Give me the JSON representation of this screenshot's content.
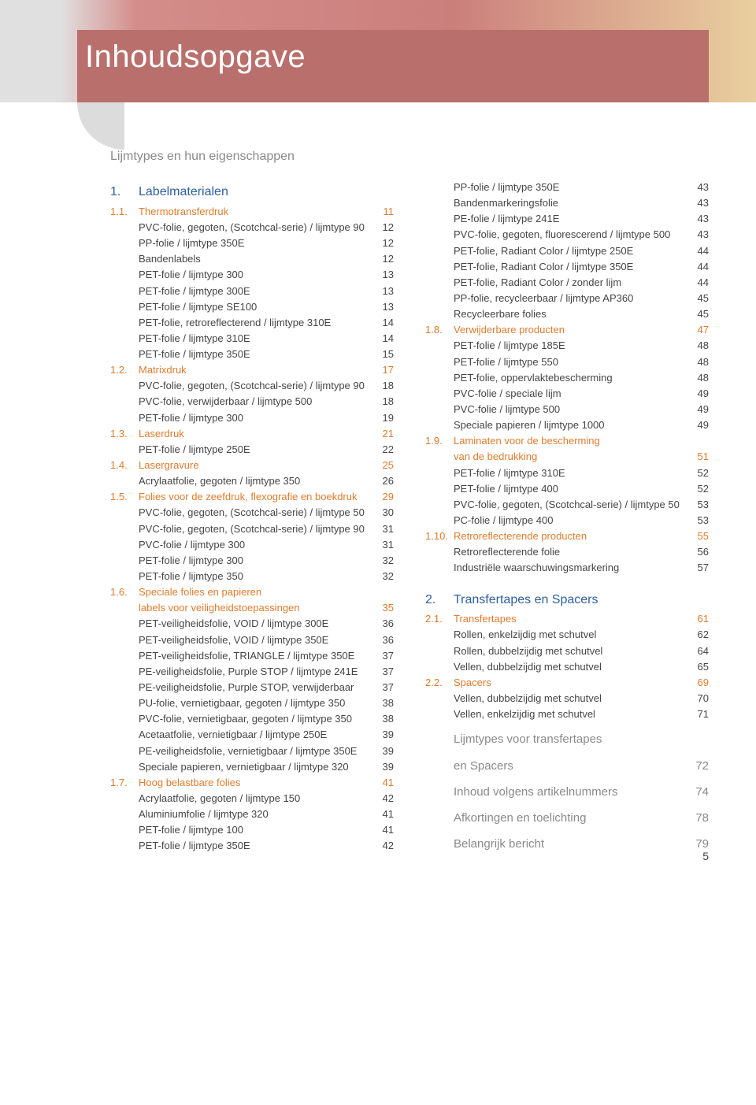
{
  "banner_title": "Inhoudsopgave",
  "intro": "Lijmtypes en hun eigenschappen",
  "page_number": "5",
  "left": [
    {
      "t": "chapter",
      "n": "1.",
      "l": "Labelmaterialen",
      "p": ""
    },
    {
      "t": "section",
      "n": "1.1.",
      "l": "Thermotransferdruk",
      "p": "11"
    },
    {
      "t": "item",
      "n": "",
      "l": "PVC-folie, gegoten, (Scotchcal-serie) / lijmtype 90",
      "p": "12"
    },
    {
      "t": "item",
      "n": "",
      "l": "PP-folie / lijmtype 350E",
      "p": "12"
    },
    {
      "t": "item",
      "n": "",
      "l": "Bandenlabels",
      "p": "12"
    },
    {
      "t": "item",
      "n": "",
      "l": "PET-folie / lijmtype 300",
      "p": "13"
    },
    {
      "t": "item",
      "n": "",
      "l": "PET-folie / lijmtype 300E",
      "p": "13"
    },
    {
      "t": "item",
      "n": "",
      "l": "PET-folie / lijmtype SE100",
      "p": "13"
    },
    {
      "t": "item",
      "n": "",
      "l": "PET-folie, retroreflecterend / lijmtype 310E",
      "p": "14"
    },
    {
      "t": "item",
      "n": "",
      "l": "PET-folie / lijmtype 310E",
      "p": "14"
    },
    {
      "t": "item",
      "n": "",
      "l": "PET-folie / lijmtype 350E",
      "p": "15"
    },
    {
      "t": "section",
      "n": "1.2.",
      "l": "Matrixdruk",
      "p": "17"
    },
    {
      "t": "item",
      "n": "",
      "l": "PVC-folie, gegoten, (Scotchcal-serie) / lijmtype 90",
      "p": "18"
    },
    {
      "t": "item",
      "n": "",
      "l": "PVC-folie, verwijderbaar / lijmtype 500",
      "p": "18"
    },
    {
      "t": "item",
      "n": "",
      "l": "PET-folie / lijmtype 300",
      "p": "19"
    },
    {
      "t": "section",
      "n": "1.3.",
      "l": "Laserdruk",
      "p": "21"
    },
    {
      "t": "item",
      "n": "",
      "l": "PET-folie / lijmtype 250E",
      "p": "22"
    },
    {
      "t": "section",
      "n": "1.4.",
      "l": "Lasergravure",
      "p": "25"
    },
    {
      "t": "item",
      "n": "",
      "l": "Acrylaatfolie, gegoten / lijmtype 350",
      "p": "26"
    },
    {
      "t": "section",
      "n": "1.5.",
      "l": "Folies voor de zeefdruk, flexografie en boekdruk",
      "p": "29"
    },
    {
      "t": "item",
      "n": "",
      "l": "PVC-folie, gegoten, (Scotchcal-serie) / lijmtype 50",
      "p": "30"
    },
    {
      "t": "item",
      "n": "",
      "l": "PVC-folie, gegoten, (Scotchcal-serie) / lijmtype 90",
      "p": "31"
    },
    {
      "t": "item",
      "n": "",
      "l": "PVC-folie / lijmtype 300",
      "p": "31"
    },
    {
      "t": "item",
      "n": "",
      "l": "PET-folie / lijmtype 300",
      "p": "32"
    },
    {
      "t": "item",
      "n": "",
      "l": "PET-folie / lijmtype 350",
      "p": "32"
    },
    {
      "t": "section",
      "n": "1.6.",
      "l": "Speciale folies en papieren",
      "p": ""
    },
    {
      "t": "section",
      "n": "",
      "l": "labels voor veiligheidstoepassingen",
      "p": "35"
    },
    {
      "t": "item",
      "n": "",
      "l": "PET-veiligheidsfolie, VOID / lijmtype 300E",
      "p": "36"
    },
    {
      "t": "item",
      "n": "",
      "l": "PET-veiligheidsfolie, VOID / lijmtype 350E",
      "p": "36"
    },
    {
      "t": "item",
      "n": "",
      "l": "PET-veiligheidsfolie, TRIANGLE / lijmtype 350E",
      "p": "37"
    },
    {
      "t": "item",
      "n": "",
      "l": "PE-veiligheidsfolie, Purple STOP / lijmtype 241E",
      "p": "37"
    },
    {
      "t": "item",
      "n": "",
      "l": "PE-veiligheidsfolie, Purple STOP, verwijderbaar",
      "p": "37"
    },
    {
      "t": "item",
      "n": "",
      "l": "PU-folie, vernietigbaar, gegoten / lijmtype 350",
      "p": "38"
    },
    {
      "t": "item",
      "n": "",
      "l": "PVC-folie, vernietigbaar, gegoten / lijmtype 350",
      "p": "38"
    },
    {
      "t": "item",
      "n": "",
      "l": "Acetaatfolie, vernietigbaar / lijmtype 250E",
      "p": "39"
    },
    {
      "t": "item",
      "n": "",
      "l": "PE-veiligheidsfolie, vernietigbaar / lijmtype 350E",
      "p": "39"
    },
    {
      "t": "item",
      "n": "",
      "l": "Speciale papieren, vernietigbaar / lijmtype 320",
      "p": "39"
    },
    {
      "t": "section",
      "n": "1.7.",
      "l": "Hoog belastbare folies",
      "p": "41"
    },
    {
      "t": "item",
      "n": "",
      "l": "Acrylaatfolie, gegoten / lijmtype 150",
      "p": "42"
    },
    {
      "t": "item",
      "n": "",
      "l": "Aluminiumfolie / lijmtype 320",
      "p": "41"
    },
    {
      "t": "item",
      "n": "",
      "l": "PET-folie / lijmtype 100",
      "p": "41"
    },
    {
      "t": "item",
      "n": "",
      "l": "PET-folie / lijmtype 350E",
      "p": "42"
    }
  ],
  "right": [
    {
      "t": "item",
      "n": "",
      "l": "PP-folie / lijmtype 350E",
      "p": "43"
    },
    {
      "t": "item",
      "n": "",
      "l": "Bandenmarkeringsfolie",
      "p": "43"
    },
    {
      "t": "item",
      "n": "",
      "l": "PE-folie / lijmtype 241E",
      "p": "43"
    },
    {
      "t": "item",
      "n": "",
      "l": "PVC-folie, gegoten, fluorescerend / lijmtype 500",
      "p": "43"
    },
    {
      "t": "item",
      "n": "",
      "l": "PET-folie, Radiant Color / lijmtype 250E",
      "p": "44"
    },
    {
      "t": "item",
      "n": "",
      "l": "PET-folie, Radiant Color / lijmtype 350E",
      "p": "44"
    },
    {
      "t": "item",
      "n": "",
      "l": "PET-folie, Radiant Color / zonder lijm",
      "p": "44"
    },
    {
      "t": "item",
      "n": "",
      "l": "PP-folie, recycleerbaar / lijmtype AP360",
      "p": "45"
    },
    {
      "t": "item",
      "n": "",
      "l": "Recycleerbare folies",
      "p": "45"
    },
    {
      "t": "section",
      "n": "1.8.",
      "l": "Verwijderbare producten",
      "p": "47"
    },
    {
      "t": "item",
      "n": "",
      "l": "PET-folie / lijmtype 185E",
      "p": "48"
    },
    {
      "t": "item",
      "n": "",
      "l": "PET-folie / lijmtype 550",
      "p": "48"
    },
    {
      "t": "item",
      "n": "",
      "l": "PET-folie, oppervlaktebescherming",
      "p": "48"
    },
    {
      "t": "item",
      "n": "",
      "l": "PVC-folie / speciale lijm",
      "p": "49"
    },
    {
      "t": "item",
      "n": "",
      "l": "PVC-folie / lijmtype 500",
      "p": "49"
    },
    {
      "t": "item",
      "n": "",
      "l": "Speciale papieren / lijmtype 1000",
      "p": "49"
    },
    {
      "t": "section",
      "n": "1.9.",
      "l": "Laminaten voor de bescherming",
      "p": ""
    },
    {
      "t": "section",
      "n": "",
      "l": "van de bedrukking",
      "p": "51"
    },
    {
      "t": "item",
      "n": "",
      "l": "PET-folie / lijmtype 310E",
      "p": "52"
    },
    {
      "t": "item",
      "n": "",
      "l": "PET-folie / lijmtype 400",
      "p": "52"
    },
    {
      "t": "item",
      "n": "",
      "l": "PVC-folie, gegoten, (Scotchcal-serie) / lijmtype 50",
      "p": "53"
    },
    {
      "t": "item",
      "n": "",
      "l": "PC-folie / lijmtype 400",
      "p": "53"
    },
    {
      "t": "section",
      "n": "1.10.",
      "l": "Retroreflecterende producten",
      "p": "55"
    },
    {
      "t": "item",
      "n": "",
      "l": "Retroreflecterende folie",
      "p": "56"
    },
    {
      "t": "item",
      "n": "",
      "l": "Industriële waarschuwingsmarkering",
      "p": "57"
    },
    {
      "t": "spacer"
    },
    {
      "t": "chapter",
      "n": "2.",
      "l": "Transfertapes en Spacers",
      "p": ""
    },
    {
      "t": "section",
      "n": "2.1.",
      "l": "Transfertapes",
      "p": "61"
    },
    {
      "t": "item",
      "n": "",
      "l": "Rollen, enkelzijdig met schutvel",
      "p": "62"
    },
    {
      "t": "item",
      "n": "",
      "l": "Rollen, dubbelzijdig met schutvel",
      "p": "64"
    },
    {
      "t": "item",
      "n": "",
      "l": "Vellen, dubbelzijdig met schutvel",
      "p": "65"
    },
    {
      "t": "section",
      "n": "2.2.",
      "l": "Spacers",
      "p": "69"
    },
    {
      "t": "item",
      "n": "",
      "l": "Vellen, dubbelzijdig met schutvel",
      "p": "70"
    },
    {
      "t": "item",
      "n": "",
      "l": "Vellen, enkelzijdig met schutvel",
      "p": "71"
    },
    {
      "t": "gray",
      "n": "",
      "l": "Lijmtypes voor transfertapes",
      "p": ""
    },
    {
      "t": "gray",
      "n": "",
      "l": "en Spacers",
      "p": "72"
    },
    {
      "t": "gray",
      "n": "",
      "l": "Inhoud volgens artikelnummers",
      "p": "74"
    },
    {
      "t": "gray",
      "n": "",
      "l": "Afkortingen en toelichting",
      "p": "78"
    },
    {
      "t": "gray",
      "n": "",
      "l": "Belangrijk bericht",
      "p": "79"
    }
  ]
}
